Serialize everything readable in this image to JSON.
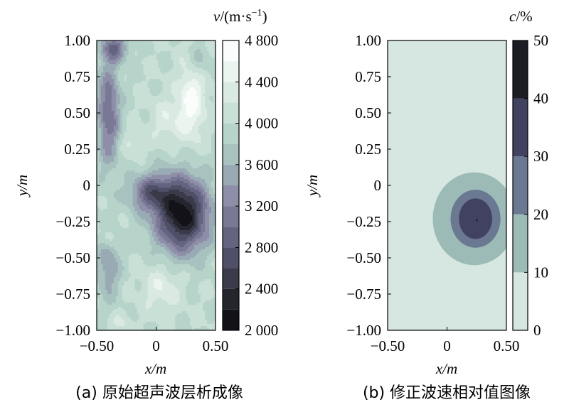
{
  "chart_data": [
    {
      "type": "heatmap",
      "caption": "(a) 原始超声波层析成像",
      "xlabel": "x/m",
      "ylabel": "y/m",
      "xlim": [
        -0.5,
        0.5
      ],
      "ylim": [
        -1.0,
        1.0
      ],
      "x_ticks": [
        -0.5,
        0,
        0.5
      ],
      "x_tick_labels": [
        "−0.50",
        "0",
        "0.50"
      ],
      "y_ticks": [
        1.0,
        0.75,
        0.5,
        0.25,
        0,
        -0.25,
        -0.5,
        -0.75,
        -1.0
      ],
      "y_tick_labels": [
        "1.00",
        "0.75",
        "0.50",
        "0.25",
        "0",
        "−0.25",
        "−0.50",
        "−0.75",
        "−1.00"
      ],
      "colorbar": {
        "label": "v/(m·s−1)",
        "label_italic": "v",
        "label_rest": "/(m·s",
        "label_sup": "−1",
        "label_close": ")",
        "range": [
          2000,
          4800
        ],
        "levels": [
          2000,
          2200,
          2400,
          2600,
          2800,
          3000,
          3200,
          3400,
          3600,
          3800,
          4000,
          4200,
          4400,
          4600,
          4800
        ],
        "tick_values": [
          4800,
          4400,
          4000,
          3600,
          3200,
          2800,
          2400,
          2000
        ],
        "tick_labels": [
          "4 800",
          "4 400",
          "4 000",
          "3 600",
          "3 200",
          "2 800",
          "2 400",
          "2 000"
        ],
        "colors": [
          "#121218",
          "#25252e",
          "#3a3a4a",
          "#4f4f68",
          "#646481",
          "#797995",
          "#8e8ea8",
          "#9aaab5",
          "#a8c2bf",
          "#b6d4ca",
          "#c8e0d6",
          "#daeae2",
          "#ebf5ef",
          "#fbfdfc"
        ]
      },
      "field": {
        "background_velocity": 4000,
        "features": [
          {
            "kind": "low",
            "x": 0.22,
            "y": -0.2,
            "value": 2050,
            "rx": 0.28,
            "ry": 0.32
          },
          {
            "kind": "low",
            "x": -0.05,
            "y": -0.05,
            "value": 3000,
            "rx": 0.22,
            "ry": 0.16
          },
          {
            "kind": "low",
            "x": -0.4,
            "y": 0.5,
            "value": 3000,
            "rx": 0.12,
            "ry": 0.45
          },
          {
            "kind": "low",
            "x": -0.35,
            "y": 0.95,
            "value": 3100,
            "rx": 0.14,
            "ry": 0.12
          },
          {
            "kind": "low",
            "x": -0.4,
            "y": -0.55,
            "value": 3400,
            "rx": 0.12,
            "ry": 0.3
          },
          {
            "kind": "low",
            "x": 0.35,
            "y": 0.85,
            "value": 3600,
            "rx": 0.12,
            "ry": 0.15
          },
          {
            "kind": "high",
            "x": 0.3,
            "y": 0.6,
            "value": 4700,
            "rx": 0.14,
            "ry": 0.35
          },
          {
            "kind": "high",
            "x": 0.1,
            "y": 0.45,
            "value": 4350,
            "rx": 0.18,
            "ry": 0.2
          },
          {
            "kind": "high",
            "x": -0.2,
            "y": 0.3,
            "value": 4250,
            "rx": 0.12,
            "ry": 0.12
          },
          {
            "kind": "high",
            "x": 0.05,
            "y": -0.7,
            "value": 4400,
            "rx": 0.2,
            "ry": 0.2
          },
          {
            "kind": "high",
            "x": -0.4,
            "y": -0.35,
            "value": 4350,
            "rx": 0.08,
            "ry": 0.1
          },
          {
            "kind": "high",
            "x": -0.3,
            "y": -0.95,
            "value": 4200,
            "rx": 0.12,
            "ry": 0.1
          }
        ]
      }
    },
    {
      "type": "heatmap",
      "caption": "(b) 修正波速相对值图像",
      "xlabel": "x/m",
      "ylabel": "y/m",
      "xlim": [
        -0.5,
        0.5
      ],
      "ylim": [
        -1.0,
        1.0
      ],
      "x_ticks": [
        -0.5,
        0,
        0.5
      ],
      "x_tick_labels": [
        "−0.50",
        "0",
        "0.50"
      ],
      "y_ticks": [
        1.0,
        0.75,
        0.5,
        0.25,
        0,
        -0.25,
        -0.5,
        -0.75,
        -1.0
      ],
      "y_tick_labels": [
        "1.00",
        "0.75",
        "0.50",
        "0.25",
        "0",
        "−0.25",
        "−0.50",
        "−0.75",
        "−1.00"
      ],
      "colorbar": {
        "label": "c/%",
        "label_italic": "c",
        "label_rest": "/%",
        "range": [
          0,
          50
        ],
        "levels": [
          0,
          10,
          20,
          30,
          40,
          50
        ],
        "tick_values": [
          50,
          40,
          30,
          20,
          10,
          0
        ],
        "tick_labels": [
          "50",
          "40",
          "30",
          "20",
          "10",
          "0"
        ],
        "colors": [
          "#d6e6e0",
          "#9cbab6",
          "#6a7892",
          "#414162",
          "#1c1c24"
        ]
      },
      "regions": [
        {
          "range": [
            10,
            20
          ],
          "center_x": 0.23,
          "center_y": -0.23,
          "rx": 0.35,
          "ry": 0.32
        },
        {
          "range": [
            20,
            30
          ],
          "center_x": 0.24,
          "center_y": -0.23,
          "rx": 0.21,
          "ry": 0.2
        },
        {
          "range": [
            30,
            40
          ],
          "center_x": 0.24,
          "center_y": -0.23,
          "rx": 0.14,
          "ry": 0.14
        },
        {
          "range": [
            40,
            50
          ],
          "center_x": 0.25,
          "center_y": -0.24,
          "rx": 0.005,
          "ry": 0.008
        }
      ]
    }
  ]
}
